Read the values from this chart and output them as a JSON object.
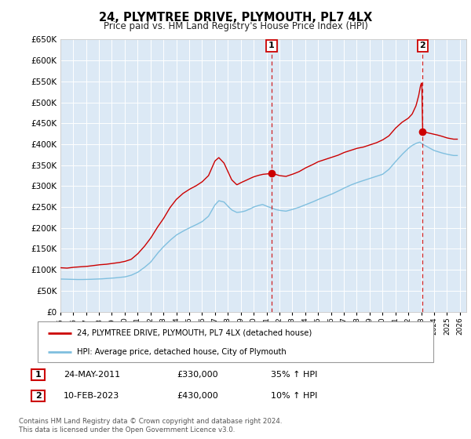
{
  "title": "24, PLYMTREE DRIVE, PLYMOUTH, PL7 4LX",
  "subtitle": "Price paid vs. HM Land Registry's House Price Index (HPI)",
  "plot_bg_color": "#dce9f5",
  "ylim": [
    0,
    650000
  ],
  "yticks": [
    0,
    50000,
    100000,
    150000,
    200000,
    250000,
    300000,
    350000,
    400000,
    450000,
    500000,
    550000,
    600000,
    650000
  ],
  "ytick_labels": [
    "£0",
    "£50K",
    "£100K",
    "£150K",
    "£200K",
    "£250K",
    "£300K",
    "£350K",
    "£400K",
    "£450K",
    "£500K",
    "£550K",
    "£600K",
    "£650K"
  ],
  "xlim_start": 1995.0,
  "xlim_end": 2026.5,
  "marker1_x": 2011.39,
  "marker1_y": 330000,
  "marker2_x": 2023.11,
  "marker2_y": 430000,
  "legend_line1": "24, PLYMTREE DRIVE, PLYMOUTH, PL7 4LX (detached house)",
  "legend_line2": "HPI: Average price, detached house, City of Plymouth",
  "table_row1": [
    "1",
    "24-MAY-2011",
    "£330,000",
    "35% ↑ HPI"
  ],
  "table_row2": [
    "2",
    "10-FEB-2023",
    "£430,000",
    "10% ↑ HPI"
  ],
  "footer1": "Contains HM Land Registry data © Crown copyright and database right 2024.",
  "footer2": "This data is licensed under the Open Government Licence v3.0.",
  "hpi_line_color": "#7fbfdf",
  "price_line_color": "#cc0000",
  "dashed_line_color": "#cc0000",
  "red_anchors": [
    [
      1995.0,
      105000
    ],
    [
      1995.5,
      104000
    ],
    [
      1996.0,
      106000
    ],
    [
      1996.5,
      107000
    ],
    [
      1997.0,
      108000
    ],
    [
      1997.5,
      110000
    ],
    [
      1998.0,
      112000
    ],
    [
      1998.5,
      113000
    ],
    [
      1999.0,
      115000
    ],
    [
      1999.5,
      117000
    ],
    [
      2000.0,
      120000
    ],
    [
      2000.5,
      125000
    ],
    [
      2001.0,
      138000
    ],
    [
      2001.5,
      155000
    ],
    [
      2002.0,
      175000
    ],
    [
      2002.5,
      200000
    ],
    [
      2003.0,
      222000
    ],
    [
      2003.5,
      248000
    ],
    [
      2004.0,
      268000
    ],
    [
      2004.5,
      282000
    ],
    [
      2005.0,
      292000
    ],
    [
      2005.5,
      300000
    ],
    [
      2006.0,
      310000
    ],
    [
      2006.5,
      325000
    ],
    [
      2007.0,
      360000
    ],
    [
      2007.3,
      368000
    ],
    [
      2007.7,
      355000
    ],
    [
      2008.0,
      335000
    ],
    [
      2008.3,
      315000
    ],
    [
      2008.7,
      303000
    ],
    [
      2009.0,
      308000
    ],
    [
      2009.3,
      312000
    ],
    [
      2009.7,
      318000
    ],
    [
      2010.0,
      322000
    ],
    [
      2010.3,
      325000
    ],
    [
      2010.7,
      328000
    ],
    [
      2011.0,
      329000
    ],
    [
      2011.39,
      330000
    ],
    [
      2011.7,
      328000
    ],
    [
      2012.0,
      325000
    ],
    [
      2012.5,
      323000
    ],
    [
      2013.0,
      328000
    ],
    [
      2013.5,
      334000
    ],
    [
      2014.0,
      343000
    ],
    [
      2014.5,
      350000
    ],
    [
      2015.0,
      358000
    ],
    [
      2015.5,
      363000
    ],
    [
      2016.0,
      368000
    ],
    [
      2016.5,
      373000
    ],
    [
      2017.0,
      380000
    ],
    [
      2017.5,
      385000
    ],
    [
      2018.0,
      390000
    ],
    [
      2018.5,
      393000
    ],
    [
      2019.0,
      398000
    ],
    [
      2019.5,
      403000
    ],
    [
      2020.0,
      410000
    ],
    [
      2020.5,
      420000
    ],
    [
      2021.0,
      438000
    ],
    [
      2021.5,
      452000
    ],
    [
      2022.0,
      462000
    ],
    [
      2022.3,
      472000
    ],
    [
      2022.6,
      492000
    ],
    [
      2022.8,
      515000
    ],
    [
      2022.95,
      540000
    ],
    [
      2023.05,
      548000
    ],
    [
      2023.11,
      430000
    ],
    [
      2023.4,
      428000
    ],
    [
      2023.7,
      426000
    ],
    [
      2024.0,
      424000
    ],
    [
      2024.5,
      420000
    ],
    [
      2025.0,
      415000
    ],
    [
      2025.5,
      412000
    ]
  ],
  "blue_anchors": [
    [
      1995.0,
      78000
    ],
    [
      1995.5,
      77500
    ],
    [
      1996.0,
      77000
    ],
    [
      1996.5,
      76800
    ],
    [
      1997.0,
      77000
    ],
    [
      1997.5,
      77500
    ],
    [
      1998.0,
      78000
    ],
    [
      1998.5,
      79000
    ],
    [
      1999.0,
      80000
    ],
    [
      1999.5,
      81500
    ],
    [
      2000.0,
      83000
    ],
    [
      2000.5,
      87000
    ],
    [
      2001.0,
      94000
    ],
    [
      2001.5,
      105000
    ],
    [
      2002.0,
      118000
    ],
    [
      2002.5,
      138000
    ],
    [
      2003.0,
      155000
    ],
    [
      2003.5,
      170000
    ],
    [
      2004.0,
      183000
    ],
    [
      2004.5,
      192000
    ],
    [
      2005.0,
      200000
    ],
    [
      2005.5,
      207000
    ],
    [
      2006.0,
      215000
    ],
    [
      2006.5,
      228000
    ],
    [
      2007.0,
      255000
    ],
    [
      2007.3,
      265000
    ],
    [
      2007.7,
      262000
    ],
    [
      2008.0,
      252000
    ],
    [
      2008.3,
      243000
    ],
    [
      2008.7,
      237000
    ],
    [
      2009.0,
      238000
    ],
    [
      2009.3,
      240000
    ],
    [
      2009.7,
      245000
    ],
    [
      2010.0,
      250000
    ],
    [
      2010.3,
      253000
    ],
    [
      2010.7,
      256000
    ],
    [
      2011.0,
      252000
    ],
    [
      2011.39,
      248000
    ],
    [
      2011.7,
      244000
    ],
    [
      2012.0,
      242000
    ],
    [
      2012.5,
      240000
    ],
    [
      2013.0,
      244000
    ],
    [
      2013.5,
      249000
    ],
    [
      2014.0,
      255000
    ],
    [
      2014.5,
      261000
    ],
    [
      2015.0,
      268000
    ],
    [
      2015.5,
      274000
    ],
    [
      2016.0,
      280000
    ],
    [
      2016.5,
      287000
    ],
    [
      2017.0,
      295000
    ],
    [
      2017.5,
      302000
    ],
    [
      2018.0,
      308000
    ],
    [
      2018.5,
      313000
    ],
    [
      2019.0,
      318000
    ],
    [
      2019.5,
      323000
    ],
    [
      2020.0,
      328000
    ],
    [
      2020.5,
      340000
    ],
    [
      2021.0,
      358000
    ],
    [
      2021.5,
      375000
    ],
    [
      2022.0,
      390000
    ],
    [
      2022.3,
      397000
    ],
    [
      2022.6,
      402000
    ],
    [
      2022.9,
      405000
    ],
    [
      2023.11,
      400000
    ],
    [
      2023.4,
      395000
    ],
    [
      2023.7,
      390000
    ],
    [
      2024.0,
      385000
    ],
    [
      2024.5,
      380000
    ],
    [
      2025.0,
      376000
    ],
    [
      2025.5,
      373000
    ]
  ]
}
